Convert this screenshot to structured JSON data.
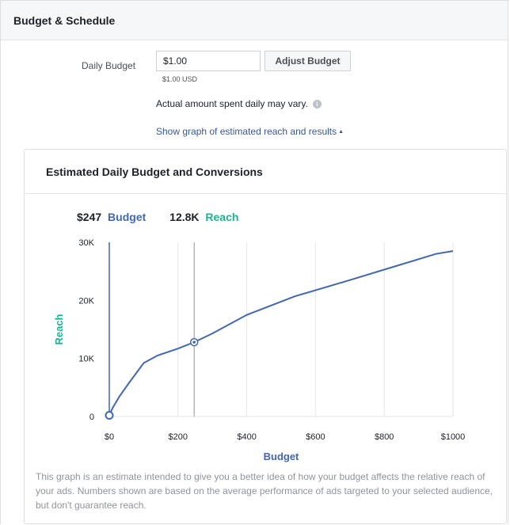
{
  "section": {
    "title": "Budget & Schedule"
  },
  "budget": {
    "label": "Daily Budget",
    "value": "$1.00",
    "sub": "$1.00 USD",
    "adjust_label": "Adjust Budget",
    "note": "Actual amount spent daily may vary.",
    "info_glyph": "i",
    "show_graph_label": "Show graph of estimated reach and results",
    "caret_glyph": "▲"
  },
  "panel": {
    "title": "Estimated Daily Budget and Conversions",
    "summary": {
      "budget_value": "$247",
      "budget_label": "Budget",
      "reach_value": "12.8K",
      "reach_label": "Reach"
    },
    "footnote": "This graph is an estimate intended to give you a better idea of how your budget affects the relative reach of your ads. Numbers shown are based on the average performance of ads targeted to your selected audience, but don't guarantee reach."
  },
  "colors": {
    "budget": "#4267b2",
    "reach": "#1db392",
    "line": "#4267b2",
    "grid": "#e5e5e5"
  },
  "chart_data": {
    "type": "line",
    "xlabel": "Budget",
    "ylabel": "Reach",
    "x_ticks": [
      0,
      200,
      400,
      600,
      800,
      1000
    ],
    "x_tick_labels": [
      "$0",
      "$200",
      "$400",
      "$600",
      "$800",
      "$1000"
    ],
    "y_ticks": [
      0,
      10000,
      20000,
      30000
    ],
    "y_tick_labels": [
      "0",
      "10K",
      "20K",
      "30K"
    ],
    "xlim": [
      0,
      1000
    ],
    "ylim": [
      0,
      30000
    ],
    "grid": true,
    "series": [
      {
        "x": [
          0,
          10,
          30,
          60,
          100,
          140,
          200,
          247,
          300,
          400,
          540,
          700,
          850,
          950,
          1000
        ],
        "y": [
          200,
          1500,
          3500,
          6000,
          9200,
          10500,
          11700,
          12800,
          14300,
          17500,
          20700,
          23500,
          26200,
          28000,
          28500
        ]
      }
    ],
    "marker": {
      "x": 247,
      "y": 12800
    },
    "origin_marker": {
      "x": 0,
      "y": 200
    }
  }
}
